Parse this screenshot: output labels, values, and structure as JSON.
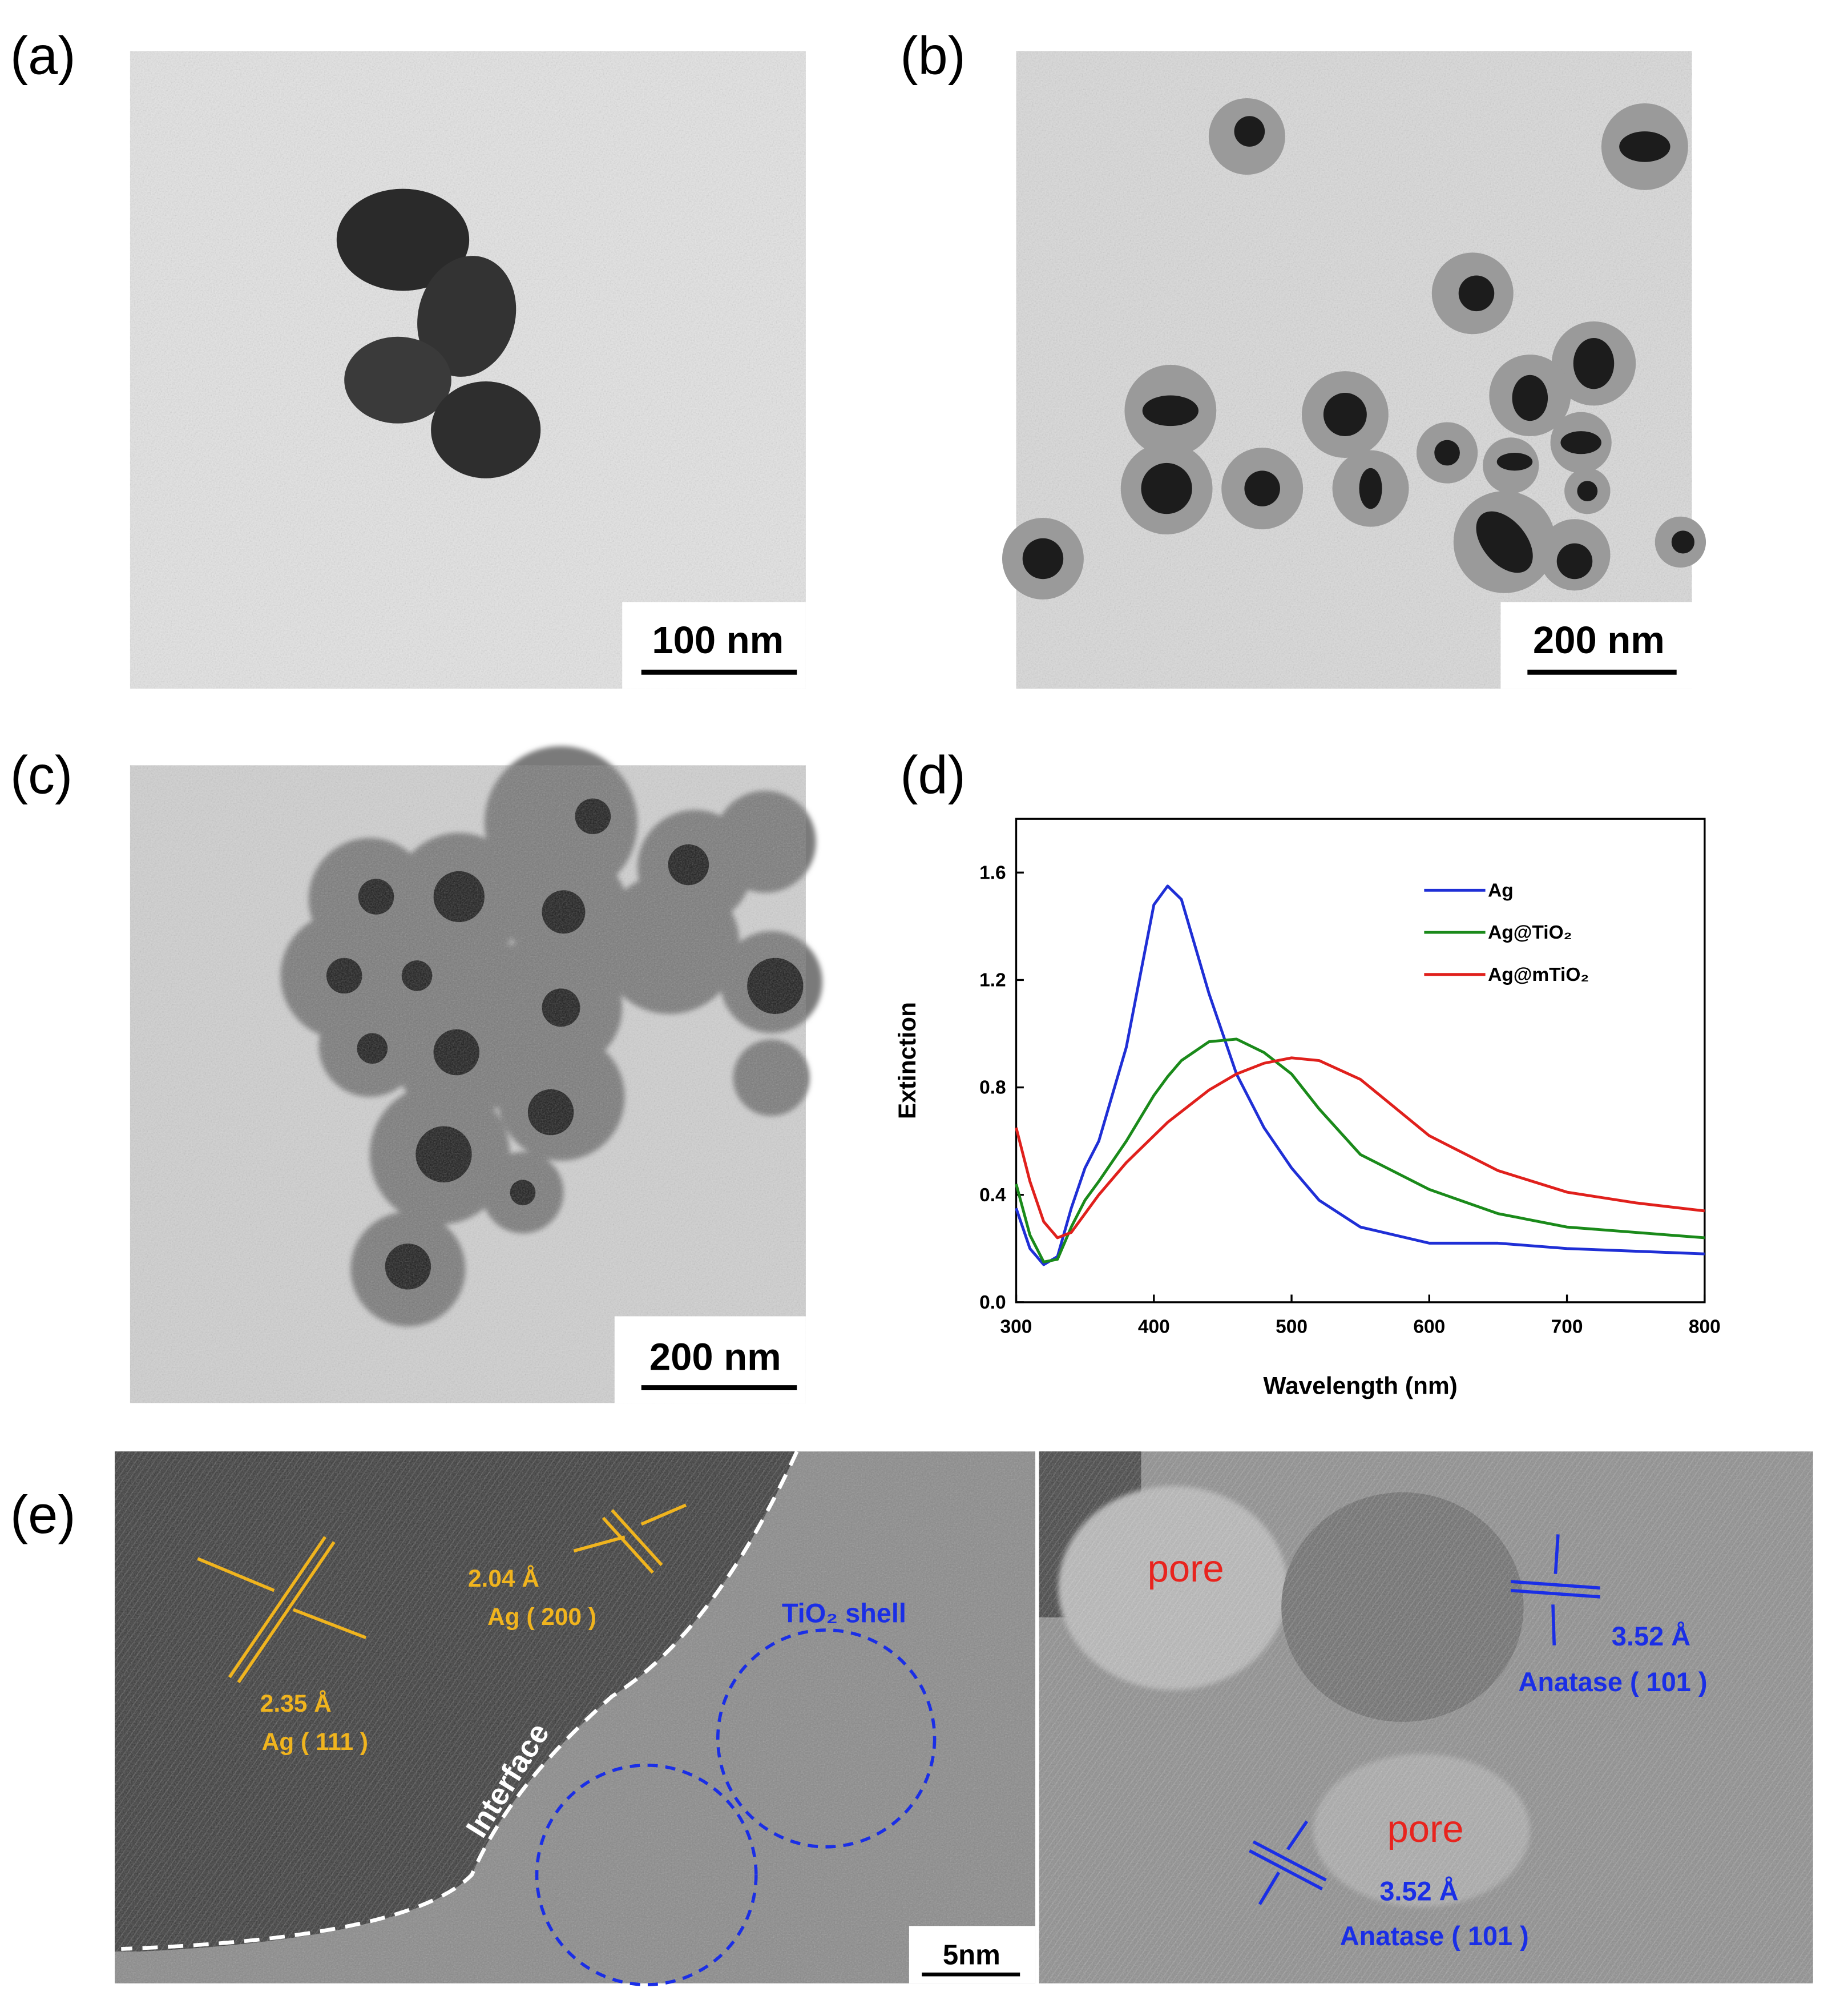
{
  "panels": {
    "a": {
      "label": "(a)",
      "scale_bar": "100 nm"
    },
    "b": {
      "label": "(b)",
      "scale_bar": "200 nm"
    },
    "c": {
      "label": "(c)",
      "scale_bar": "200 nm"
    },
    "d": {
      "label": "(d)"
    },
    "e": {
      "label": "(e)",
      "scale_bar": "5nm",
      "left": {
        "spacing_1": "2.35 Å",
        "plane_1": "Ag ( 111 )",
        "spacing_2": "2.04 Å",
        "plane_2": "Ag ( 200 )",
        "interface": "Interface",
        "shell": "TiO₂ shell"
      },
      "right": {
        "pore_1": "pore",
        "pore_2": "pore",
        "spacing_1": "3.52 Å",
        "plane_1": "Anatase ( 101 )",
        "spacing_2": "3.52 Å",
        "plane_2": "Anatase ( 101 )"
      }
    }
  },
  "chart_data": {
    "type": "line",
    "x_label": "Wavelength (nm)",
    "y_label": "Extinction",
    "x": [
      300,
      310,
      320,
      330,
      340,
      350,
      360,
      380,
      400,
      410,
      420,
      440,
      460,
      480,
      500,
      520,
      550,
      600,
      650,
      700,
      750,
      800
    ],
    "series": [
      {
        "name": "Ag",
        "color": "#1f2fd6",
        "values": [
          0.35,
          0.2,
          0.14,
          0.17,
          0.35,
          0.5,
          0.6,
          0.95,
          1.48,
          1.55,
          1.5,
          1.15,
          0.85,
          0.65,
          0.5,
          0.38,
          0.28,
          0.22,
          0.22,
          0.2,
          0.19,
          0.18
        ]
      },
      {
        "name": "Ag@TiO₂",
        "color": "#1a8a1a",
        "values": [
          0.44,
          0.25,
          0.15,
          0.16,
          0.28,
          0.38,
          0.45,
          0.6,
          0.77,
          0.84,
          0.9,
          0.97,
          0.98,
          0.93,
          0.85,
          0.72,
          0.55,
          0.42,
          0.33,
          0.28,
          0.26,
          0.24
        ]
      },
      {
        "name": "Ag@mTiO₂",
        "color": "#e0201c",
        "values": [
          0.65,
          0.45,
          0.3,
          0.24,
          0.26,
          0.33,
          0.4,
          0.52,
          0.62,
          0.67,
          0.71,
          0.79,
          0.85,
          0.89,
          0.91,
          0.9,
          0.83,
          0.62,
          0.49,
          0.41,
          0.37,
          0.34
        ]
      }
    ],
    "xlim": [
      300,
      800
    ],
    "xticks": [
      300,
      400,
      500,
      600,
      700,
      800
    ],
    "ylim": [
      0,
      1.8
    ],
    "yticks": [
      {
        "value": 0,
        "label": "0.0"
      },
      0.4,
      0.8,
      1.2,
      1.6
    ],
    "legend": "upper right"
  }
}
